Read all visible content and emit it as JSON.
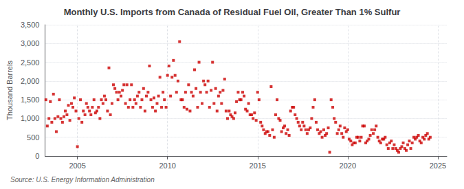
{
  "chart_data": {
    "type": "scatter",
    "title": "Monthly U.S. Imports from Canada of Residual Fuel Oil, Greater Than 1% Sulfur",
    "ylabel": "Thousand Barrels",
    "source": "Source: U.S. Energy Information Administration",
    "color": "#cc0000",
    "marker": "square",
    "grid": true,
    "xlim": [
      2003.2,
      2025.5
    ],
    "xticks": [
      2005,
      2010,
      2015,
      2020,
      2025
    ],
    "ylim": [
      0,
      3500
    ],
    "yticks": [
      0,
      500,
      {
        "value": 1000,
        "label": "1,000"
      },
      {
        "value": 1500,
        "label": "1,500"
      },
      {
        "value": 2000,
        "label": "2,000"
      },
      {
        "value": 2500,
        "label": "2,500"
      },
      {
        "value": 3000,
        "label": "3,000"
      },
      {
        "value": 3500,
        "label": "3,500"
      }
    ],
    "x": [
      2003.25,
      2003.33,
      2003.42,
      2003.5,
      2003.58,
      2003.67,
      2003.75,
      2003.83,
      2003.92,
      2004.0,
      2004.08,
      2004.17,
      2004.25,
      2004.33,
      2004.42,
      2004.5,
      2004.58,
      2004.67,
      2004.75,
      2004.83,
      2004.92,
      2005.0,
      2005.08,
      2005.17,
      2005.25,
      2005.33,
      2005.42,
      2005.5,
      2005.58,
      2005.67,
      2005.75,
      2005.83,
      2005.92,
      2006.0,
      2006.08,
      2006.17,
      2006.25,
      2006.33,
      2006.42,
      2006.5,
      2006.58,
      2006.67,
      2006.75,
      2006.83,
      2006.92,
      2007.0,
      2007.08,
      2007.17,
      2007.25,
      2007.33,
      2007.42,
      2007.5,
      2007.58,
      2007.67,
      2007.75,
      2007.83,
      2007.92,
      2008.0,
      2008.08,
      2008.17,
      2008.25,
      2008.33,
      2008.42,
      2008.5,
      2008.58,
      2008.67,
      2008.75,
      2008.83,
      2008.92,
      2009.0,
      2009.08,
      2009.17,
      2009.25,
      2009.33,
      2009.42,
      2009.5,
      2009.58,
      2009.67,
      2009.75,
      2009.83,
      2009.92,
      2010.0,
      2010.08,
      2010.17,
      2010.25,
      2010.33,
      2010.42,
      2010.5,
      2010.58,
      2010.67,
      2010.75,
      2010.83,
      2010.92,
      2011.0,
      2011.08,
      2011.17,
      2011.25,
      2011.33,
      2011.42,
      2011.5,
      2011.58,
      2011.67,
      2011.75,
      2011.83,
      2011.92,
      2012.0,
      2012.08,
      2012.17,
      2012.25,
      2012.33,
      2012.42,
      2012.5,
      2012.58,
      2012.67,
      2012.75,
      2012.83,
      2012.92,
      2013.0,
      2013.08,
      2013.17,
      2013.25,
      2013.33,
      2013.42,
      2013.5,
      2013.58,
      2013.67,
      2013.75,
      2013.83,
      2013.92,
      2014.0,
      2014.08,
      2014.17,
      2014.25,
      2014.33,
      2014.42,
      2014.5,
      2014.58,
      2014.67,
      2014.75,
      2014.83,
      2014.92,
      2015.0,
      2015.08,
      2015.17,
      2015.25,
      2015.33,
      2015.42,
      2015.5,
      2015.58,
      2015.67,
      2015.75,
      2015.83,
      2015.92,
      2016.0,
      2016.08,
      2016.17,
      2016.25,
      2016.33,
      2016.42,
      2016.5,
      2016.58,
      2016.67,
      2016.75,
      2016.83,
      2016.92,
      2017.0,
      2017.08,
      2017.17,
      2017.25,
      2017.33,
      2017.42,
      2017.5,
      2017.58,
      2017.67,
      2017.75,
      2017.83,
      2017.92,
      2018.0,
      2018.08,
      2018.17,
      2018.25,
      2018.33,
      2018.42,
      2018.5,
      2018.58,
      2018.67,
      2018.75,
      2018.83,
      2018.92,
      2019.0,
      2019.08,
      2019.17,
      2019.25,
      2019.33,
      2019.42,
      2019.5,
      2019.58,
      2019.67,
      2019.75,
      2019.83,
      2019.92,
      2020.0,
      2020.08,
      2020.17,
      2020.25,
      2020.33,
      2020.42,
      2020.5,
      2020.58,
      2020.67,
      2020.75,
      2020.83,
      2020.92,
      2021.0,
      2021.08,
      2021.17,
      2021.25,
      2021.33,
      2021.42,
      2021.5,
      2021.58,
      2021.67,
      2021.75,
      2021.83,
      2021.92,
      2022.0,
      2022.08,
      2022.17,
      2022.25,
      2022.33,
      2022.42,
      2022.5,
      2022.58,
      2022.67,
      2022.75,
      2022.83,
      2022.92,
      2023.0,
      2023.08,
      2023.17,
      2023.25,
      2023.33,
      2023.42,
      2023.5,
      2023.58,
      2023.67,
      2023.75,
      2023.83,
      2023.92,
      2024.0,
      2024.08,
      2024.17,
      2024.25,
      2024.33,
      2024.42,
      2024.5,
      2024.58
    ],
    "values": [
      1500,
      800,
      1000,
      1450,
      900,
      1650,
      1000,
      650,
      1050,
      1500,
      1000,
      900,
      1050,
      1200,
      1100,
      1350,
      950,
      1400,
      1300,
      1550,
      1200,
      250,
      1000,
      1500,
      900,
      1200,
      1100,
      1400,
      1300,
      1200,
      1100,
      1300,
      1500,
      1150,
      1200,
      1300,
      1000,
      1500,
      1400,
      1600,
      1500,
      1200,
      2350,
      1100,
      1400,
      1900,
      1800,
      1700,
      1500,
      1700,
      1600,
      1750,
      1900,
      1400,
      1900,
      1300,
      1500,
      1900,
      1300,
      1500,
      1400,
      1600,
      1700,
      1300,
      1500,
      1800,
      1200,
      1600,
      1700,
      2400,
      1500,
      1300,
      1550,
      1200,
      1400,
      1600,
      2100,
      1300,
      1700,
      1500,
      1300,
      2150,
      2400,
      1600,
      2100,
      2550,
      2150,
      1700,
      2000,
      3050,
      1500,
      1500,
      1300,
      1700,
      1250,
      1900,
      1200,
      1700,
      1600,
      2300,
      1800,
      1300,
      2500,
      1700,
      1400,
      2000,
      1900,
      1700,
      2000,
      1300,
      1750,
      2500,
      1400,
      1800,
      1200,
      1600,
      1700,
      1400,
      1750,
      2050,
      1200,
      1000,
      1200,
      1100,
      1050,
      1000,
      1150,
      1450,
      1700,
      1500,
      1500,
      1700,
      1600,
      1250,
      1200,
      1400,
      1100,
      1100,
      1000,
      1150,
      950,
      1700,
      1500,
      900,
      800,
      700,
      600,
      650,
      650,
      550,
      1850,
      700,
      500,
      1100,
      1500,
      1000,
      950,
      650,
      750,
      800,
      600,
      700,
      550,
      1200,
      1300,
      1300,
      1100,
      1000,
      900,
      800,
      700,
      900,
      800,
      700,
      600,
      700,
      750,
      1000,
      1300,
      1500,
      900,
      700,
      600,
      650,
      500,
      700,
      550,
      600,
      750,
      100,
      1500,
      1300,
      1000,
      900,
      600,
      700,
      800,
      600,
      500,
      750,
      650,
      700,
      450,
      400,
      300,
      350,
      350,
      500,
      500,
      400,
      500,
      800,
      800,
      350,
      400,
      450,
      550,
      700,
      600,
      700,
      800,
      500,
      400,
      350,
      450,
      450,
      500,
      300,
      200,
      350,
      400,
      200,
      300,
      200,
      150,
      100,
      200,
      250,
      350,
      200,
      150,
      300,
      400,
      200,
      350,
      500,
      450,
      500,
      550,
      400,
      350,
      500,
      450,
      550,
      600,
      450,
      500
    ]
  }
}
